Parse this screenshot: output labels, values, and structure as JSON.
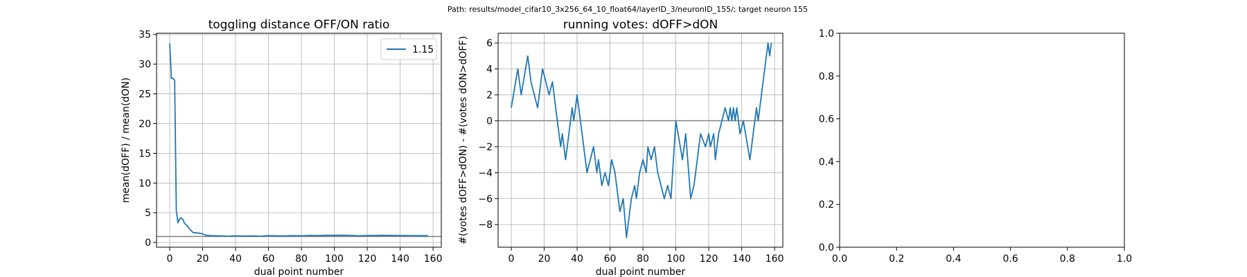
{
  "suptitle": "Path: results/model_cifar10_3x256_64_10_float64/layerID_3/neuronID_155/; target neuron 155",
  "colors": {
    "series": "#1f77b4",
    "reference_line": "#808080",
    "grid": "#b0b0b0"
  },
  "chart_data": [
    {
      "type": "line",
      "title": "toggling distance OFF/ON ratio",
      "xlabel": "dual point number",
      "ylabel": "mean(dOFF) / mean(dON)",
      "xlim": [
        -8,
        165
      ],
      "ylim": [
        -0.8,
        35.2
      ],
      "xticks": [
        0,
        20,
        40,
        60,
        80,
        100,
        120,
        140,
        160
      ],
      "yticks": [
        0,
        5,
        10,
        15,
        20,
        25,
        30,
        35
      ],
      "grid": true,
      "legend": "top-right",
      "hline": 1,
      "series": [
        {
          "name": "1.15",
          "x": [
            0,
            1,
            2,
            3,
            4,
            5,
            6,
            7,
            8,
            9,
            10,
            11,
            12,
            13,
            14,
            15,
            16,
            18,
            20,
            22,
            25,
            30,
            35,
            40,
            45,
            50,
            55,
            60,
            65,
            70,
            75,
            80,
            85,
            90,
            95,
            100,
            105,
            110,
            115,
            120,
            125,
            130,
            135,
            140,
            145,
            150,
            155,
            157
          ],
          "y": [
            33.5,
            27.6,
            27.6,
            27.3,
            5.3,
            3.3,
            4.0,
            4.1,
            3.9,
            3.2,
            3.0,
            2.7,
            2.3,
            2.0,
            1.7,
            1.6,
            1.65,
            1.55,
            1.45,
            1.2,
            1.15,
            1.1,
            1.05,
            1.12,
            1.08,
            1.1,
            1.05,
            1.15,
            1.1,
            1.1,
            1.15,
            1.12,
            1.18,
            1.15,
            1.2,
            1.2,
            1.22,
            1.18,
            1.12,
            1.17,
            1.18,
            1.2,
            1.18,
            1.17,
            1.15,
            1.14,
            1.15,
            1.15
          ]
        }
      ]
    },
    {
      "type": "line",
      "title": "running votes: dOFF>dON",
      "xlabel": "dual point number",
      "ylabel": "#(votes dOFF>dON) - #(votes dON>dOFF)",
      "xlim": [
        -8,
        165
      ],
      "ylim": [
        -9.75,
        6.75
      ],
      "xticks": [
        0,
        20,
        40,
        60,
        80,
        100,
        120,
        140,
        160
      ],
      "yticks": [
        -8,
        -6,
        -4,
        -2,
        0,
        2,
        4,
        6
      ],
      "grid": true,
      "hline": 0,
      "series": [
        {
          "x": [
            0,
            4,
            6,
            10,
            12,
            14,
            16,
            19,
            21,
            23,
            25,
            26,
            28,
            30,
            31,
            33,
            35,
            37,
            38,
            40,
            43,
            46,
            48,
            50,
            52,
            53,
            55,
            57,
            59,
            61,
            63,
            65,
            66,
            68,
            70,
            73,
            75,
            76,
            78,
            80,
            82,
            83,
            85,
            87,
            89,
            91,
            93,
            95,
            97,
            100,
            104,
            106,
            109,
            111,
            113,
            115,
            118,
            120,
            121,
            123,
            124,
            126,
            130,
            132,
            133,
            134,
            135,
            136,
            137,
            138,
            139,
            141,
            145,
            147,
            149,
            150,
            152,
            156,
            157,
            158
          ],
          "y": [
            1,
            4,
            2,
            5,
            3,
            2,
            1,
            4,
            3,
            2,
            3,
            2,
            0,
            -2,
            -1,
            -3,
            -1,
            1,
            0,
            2,
            -1,
            -4,
            -3,
            -2,
            -4,
            -3,
            -5,
            -4,
            -5,
            -3,
            -4,
            -6,
            -7,
            -6,
            -9,
            -6,
            -5,
            -6,
            -4,
            -3,
            -4,
            -2,
            -3,
            -2,
            -4,
            -5,
            -6,
            -5,
            -6,
            0,
            -3,
            -1,
            -6,
            -5,
            -3,
            -1,
            -2,
            -1,
            -2,
            -1,
            -3,
            -1,
            1,
            0,
            1,
            0,
            1,
            0,
            1,
            0,
            -1,
            0,
            -3,
            -1,
            1,
            0,
            2,
            6,
            5,
            6
          ]
        }
      ]
    },
    {
      "type": "line",
      "xlim": [
        0,
        1
      ],
      "ylim": [
        0,
        1
      ],
      "xticks": [
        0.0,
        0.2,
        0.4,
        0.6,
        0.8,
        1.0
      ],
      "yticks": [
        0.0,
        0.2,
        0.4,
        0.6,
        0.8,
        1.0
      ],
      "tick_format": 1,
      "grid": false,
      "series": []
    }
  ]
}
